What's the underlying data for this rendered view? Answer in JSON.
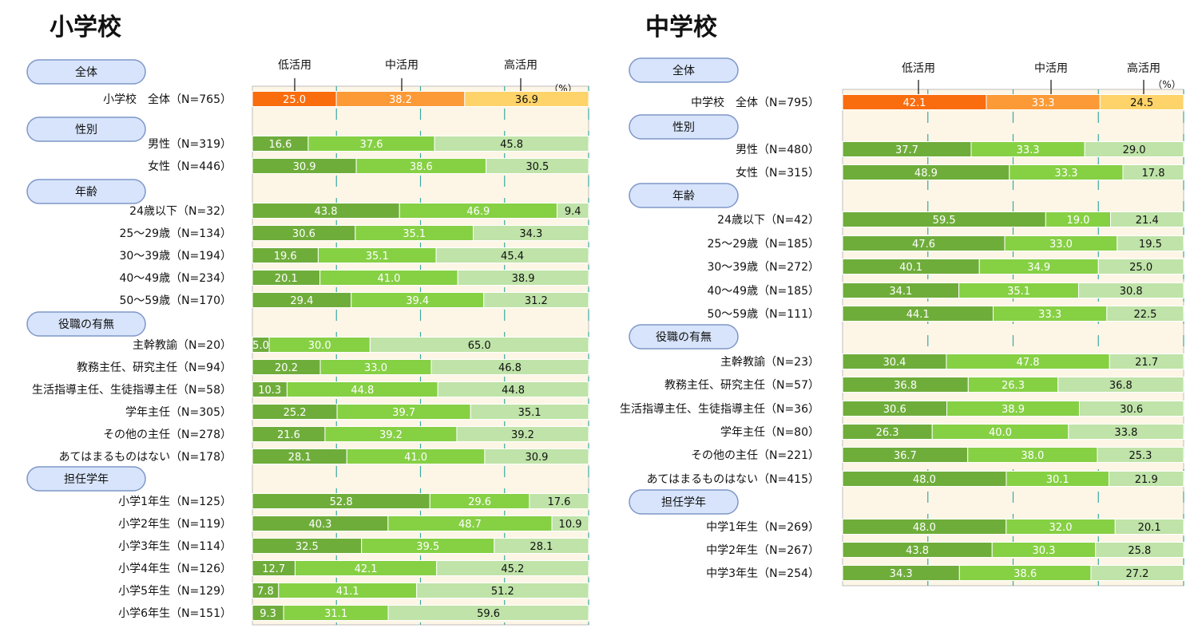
{
  "colors": {
    "overall": [
      "#f96d0f",
      "#fb9a36",
      "#fdd36a"
    ],
    "group": [
      "#6fad3b",
      "#86d044",
      "#bfe3a8"
    ],
    "panel_bg": "#fdf6e6",
    "grid": "#3aa9a3",
    "pill_fill": "#d7e4fb",
    "pill_stroke": "#7f97c8"
  },
  "chart_data": [
    {
      "type": "bar",
      "orientation": "horizontal-stacked-100",
      "title": "小学校",
      "unit": "（%）",
      "legend": [
        "低活用",
        "中活用",
        "高活用"
      ],
      "rows": [
        {
          "kind": "section",
          "label": "全体"
        },
        {
          "kind": "overall",
          "label": "小学校　全体（N=765）",
          "values": [
            25.0,
            38.2,
            36.9
          ]
        },
        {
          "kind": "section",
          "label": "性別"
        },
        {
          "kind": "bar",
          "label": "男性（N=319）",
          "values": [
            16.6,
            37.6,
            45.8
          ]
        },
        {
          "kind": "bar",
          "label": "女性（N=446）",
          "values": [
            30.9,
            38.6,
            30.5
          ]
        },
        {
          "kind": "section",
          "label": "年齢"
        },
        {
          "kind": "bar",
          "label": "24歳以下（N=32）",
          "values": [
            43.8,
            46.9,
            9.4
          ]
        },
        {
          "kind": "bar",
          "label": "25～29歳（N=134）",
          "values": [
            30.6,
            35.1,
            34.3
          ]
        },
        {
          "kind": "bar",
          "label": "30～39歳（N=194）",
          "values": [
            19.6,
            35.1,
            45.4
          ]
        },
        {
          "kind": "bar",
          "label": "40～49歳（N=234）",
          "values": [
            20.1,
            41.0,
            38.9
          ]
        },
        {
          "kind": "bar",
          "label": "50～59歳（N=170）",
          "values": [
            29.4,
            39.4,
            31.2
          ]
        },
        {
          "kind": "section",
          "label": "役職の有無"
        },
        {
          "kind": "bar",
          "label": "主幹教諭（N=20）",
          "values": [
            5.0,
            30.0,
            65.0
          ]
        },
        {
          "kind": "bar",
          "label": "教務主任、研究主任（N=94）",
          "values": [
            20.2,
            33.0,
            46.8
          ]
        },
        {
          "kind": "bar",
          "label": "生活指導主任、生徒指導主任（N=58）",
          "values": [
            10.3,
            44.8,
            44.8
          ]
        },
        {
          "kind": "bar",
          "label": "学年主任（N=305）",
          "values": [
            25.2,
            39.7,
            35.1
          ]
        },
        {
          "kind": "bar",
          "label": "その他の主任（N=278）",
          "values": [
            21.6,
            39.2,
            39.2
          ]
        },
        {
          "kind": "bar",
          "label": "あてはまるものはない（N=178）",
          "values": [
            28.1,
            41.0,
            30.9
          ]
        },
        {
          "kind": "section",
          "label": "担任学年"
        },
        {
          "kind": "bar",
          "label": "小学1年生（N=125）",
          "values": [
            52.8,
            29.6,
            17.6
          ]
        },
        {
          "kind": "bar",
          "label": "小学2年生（N=119）",
          "values": [
            40.3,
            48.7,
            10.9
          ]
        },
        {
          "kind": "bar",
          "label": "小学3年生（N=114）",
          "values": [
            32.5,
            39.5,
            28.1
          ]
        },
        {
          "kind": "bar",
          "label": "小学4年生（N=126）",
          "values": [
            12.7,
            42.1,
            45.2
          ]
        },
        {
          "kind": "bar",
          "label": "小学5年生（N=129）",
          "values": [
            7.8,
            41.1,
            51.2
          ]
        },
        {
          "kind": "bar",
          "label": "小学6年生（N=151）",
          "values": [
            9.3,
            31.1,
            59.6
          ]
        }
      ]
    },
    {
      "type": "bar",
      "orientation": "horizontal-stacked-100",
      "title": "中学校",
      "unit": "（%）",
      "legend": [
        "低活用",
        "中活用",
        "高活用"
      ],
      "rows": [
        {
          "kind": "section",
          "label": "全体"
        },
        {
          "kind": "overall",
          "label": "中学校　全体（N=795）",
          "values": [
            42.1,
            33.3,
            24.5
          ]
        },
        {
          "kind": "section",
          "label": "性別"
        },
        {
          "kind": "bar",
          "label": "男性（N=480）",
          "values": [
            37.7,
            33.3,
            29.0
          ]
        },
        {
          "kind": "bar",
          "label": "女性（N=315）",
          "values": [
            48.9,
            33.3,
            17.8
          ]
        },
        {
          "kind": "section",
          "label": "年齢"
        },
        {
          "kind": "bar",
          "label": "24歳以下（N=42）",
          "values": [
            59.5,
            19.0,
            21.4
          ]
        },
        {
          "kind": "bar",
          "label": "25～29歳（N=185）",
          "values": [
            47.6,
            33.0,
            19.5
          ]
        },
        {
          "kind": "bar",
          "label": "30～39歳（N=272）",
          "values": [
            40.1,
            34.9,
            25.0
          ]
        },
        {
          "kind": "bar",
          "label": "40～49歳（N=185）",
          "values": [
            34.1,
            35.1,
            30.8
          ]
        },
        {
          "kind": "bar",
          "label": "50～59歳（N=111）",
          "values": [
            44.1,
            33.3,
            22.5
          ]
        },
        {
          "kind": "section",
          "label": "役職の有無"
        },
        {
          "kind": "bar",
          "label": "主幹教諭（N=23）",
          "values": [
            30.4,
            47.8,
            21.7
          ]
        },
        {
          "kind": "bar",
          "label": "教務主任、研究主任（N=57）",
          "values": [
            36.8,
            26.3,
            36.8
          ]
        },
        {
          "kind": "bar",
          "label": "生活指導主任、生徒指導主任（N=36）",
          "values": [
            30.6,
            38.9,
            30.6
          ]
        },
        {
          "kind": "bar",
          "label": "学年主任（N=80）",
          "values": [
            26.3,
            40.0,
            33.8
          ]
        },
        {
          "kind": "bar",
          "label": "その他の主任（N=221）",
          "values": [
            36.7,
            38.0,
            25.3
          ]
        },
        {
          "kind": "bar",
          "label": "あてはまるものはない（N=415）",
          "values": [
            48.0,
            30.1,
            21.9
          ]
        },
        {
          "kind": "section",
          "label": "担任学年"
        },
        {
          "kind": "bar",
          "label": "中学1年生（N=269）",
          "values": [
            48.0,
            32.0,
            20.1
          ]
        },
        {
          "kind": "bar",
          "label": "中学2年生（N=267）",
          "values": [
            43.8,
            30.3,
            25.8
          ]
        },
        {
          "kind": "bar",
          "label": "中学3年生（N=254）",
          "values": [
            34.3,
            38.6,
            27.2
          ]
        }
      ]
    }
  ]
}
